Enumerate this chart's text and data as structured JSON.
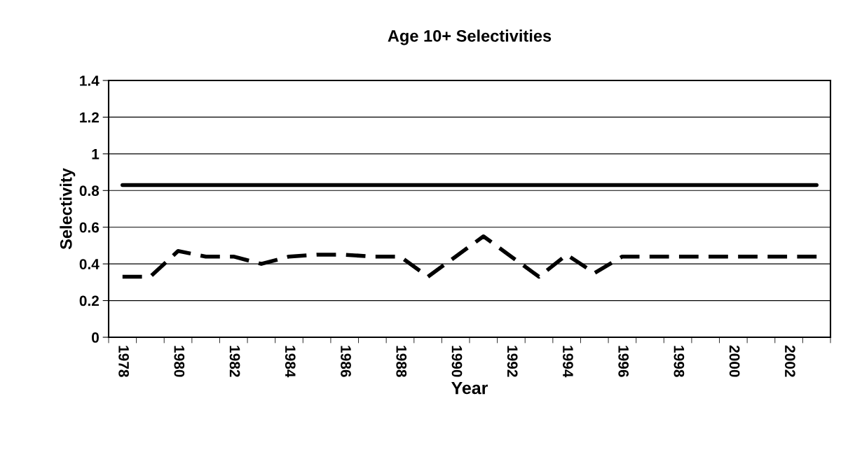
{
  "chart_data": {
    "type": "line",
    "title": "Age 10+ Selectivities",
    "xlabel": "Year",
    "ylabel": "Selectivity",
    "categories": [
      "1978",
      null,
      "1980",
      null,
      "1982",
      null,
      "1984",
      null,
      "1986",
      null,
      "1988",
      null,
      "1990",
      null,
      "1992",
      null,
      "1994",
      null,
      "1996",
      null,
      "1998",
      null,
      "2000",
      null,
      "2002",
      null
    ],
    "series": [
      {
        "color": "#000000",
        "line_style": "solid",
        "values": [
          0.83,
          0.83,
          0.83,
          0.83,
          0.83,
          0.83,
          0.83,
          0.83,
          0.83,
          0.83,
          0.83,
          0.83,
          0.83,
          0.83,
          0.83,
          0.83,
          0.83,
          0.83,
          0.83,
          0.83,
          0.83,
          0.83,
          0.83,
          0.83,
          0.83,
          0.83
        ]
      },
      {
        "color": "#000000",
        "line_style": "dashed",
        "values": [
          0.33,
          0.33,
          0.47,
          0.44,
          0.44,
          0.4,
          0.44,
          0.45,
          0.45,
          0.44,
          0.44,
          0.33,
          0.44,
          0.55,
          0.44,
          0.33,
          0.45,
          0.35,
          0.44,
          0.44,
          0.44,
          0.44,
          0.44,
          0.44,
          0.44,
          0.44
        ]
      }
    ],
    "ylim": [
      0,
      1.4
    ],
    "yticks": [
      0,
      0.2,
      0.4,
      0.6,
      0.8,
      1,
      1.2,
      1.4
    ],
    "grid": "y",
    "legend": false,
    "marker": "none"
  }
}
